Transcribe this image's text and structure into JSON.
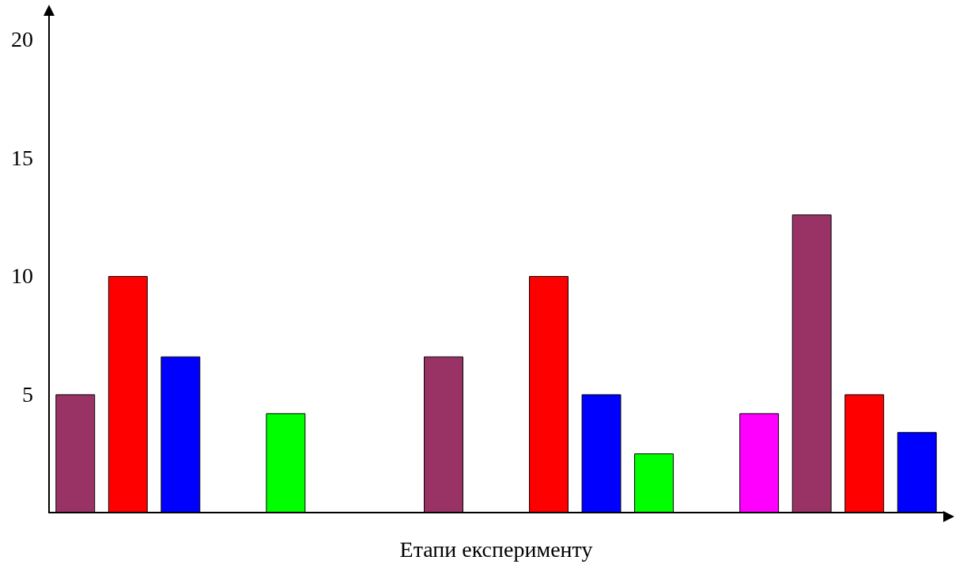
{
  "chart_data": {
    "type": "bar",
    "xlabel": "Етапи експерименту",
    "categories": [
      null,
      null,
      null,
      null,
      null,
      null,
      null,
      null,
      null,
      null,
      null,
      null,
      null,
      null,
      null,
      null,
      null
    ],
    "values": [
      5,
      10,
      6.6,
      null,
      4.2,
      null,
      null,
      6.6,
      null,
      10,
      5,
      2.5,
      null,
      4.2,
      12.6,
      5,
      3.4
    ],
    "colors": [
      "#993366",
      "#ff0000",
      "#0000ff",
      null,
      "#00ff00",
      null,
      null,
      "#993366",
      null,
      "#ff0000",
      "#0000ff",
      "#00ff00",
      null,
      "#ff00ff",
      "#993366",
      "#ff0000",
      "#0000ff"
    ],
    "ylim": [
      0,
      21
    ],
    "yticks": [
      5,
      10,
      15,
      20
    ],
    "grid": false
  }
}
